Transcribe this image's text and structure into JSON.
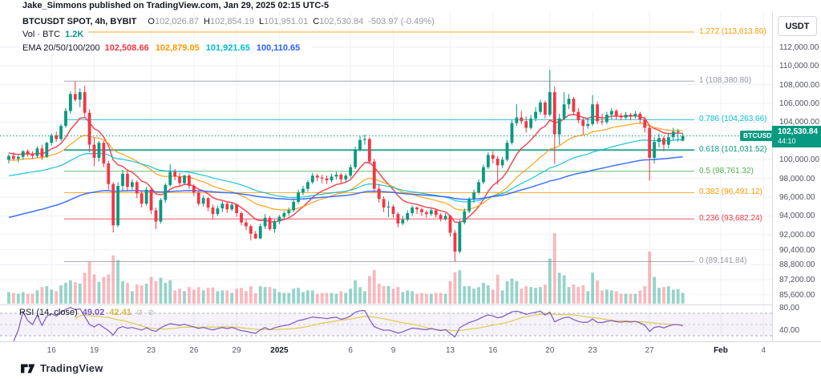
{
  "watermark": "Jake_Simmons published on TradingView.com, Jan 29, 2025 02:15 UTC-5",
  "legend": {
    "symbol": "BTCUSDT SPOT, 4h, BYBIT",
    "o_label": "O",
    "o": "102,026.87",
    "h_label": "H",
    "h": "102,854.19",
    "l_label": "L",
    "l": "101,951.01",
    "c_label": "C",
    "c": "102,530.84",
    "change": "-503.97 (-0.49%)",
    "vol_label": "Vol · BTC",
    "vol_value": "1.2K",
    "vol_color": "#089981",
    "ema_label": "EMA 20/50/100/200",
    "ema_values": [
      "102,508.66",
      "102,879.05",
      "101,921.65",
      "100,110.65"
    ],
    "ema_colors": [
      "#f23645",
      "#ff9800",
      "#00bcd4",
      "#2962ff"
    ]
  },
  "rsi_legend": {
    "label": "RSI (14, close)",
    "value": "49.02",
    "value_color": "#7e57c2",
    "ma_value": "42.41",
    "ma_color": "#d8b63f",
    "hide_icon": "⊘"
  },
  "price_axis": {
    "currency": "USDT",
    "labels": [
      {
        "text": "112,000.00",
        "price": 112000
      },
      {
        "text": "110,000.00",
        "price": 110000
      },
      {
        "text": "108,000.00",
        "price": 108000
      },
      {
        "text": "106,000.00",
        "price": 106000
      },
      {
        "text": "104,000.00",
        "price": 104000
      },
      {
        "text": "100,000.00",
        "price": 100000
      },
      {
        "text": "98,000.00",
        "price": 98000
      },
      {
        "text": "96,000.00",
        "price": 96000
      },
      {
        "text": "94,000.00",
        "price": 94000
      },
      {
        "text": "92,000.00",
        "price": 92000
      },
      {
        "text": "90,400.00",
        "price": 90400
      },
      {
        "text": "88,800.00",
        "price": 88800
      },
      {
        "text": "87,200.00",
        "price": 87200
      },
      {
        "text": "85,600.00",
        "price": 85600
      }
    ],
    "rsi_labels": [
      {
        "text": "80.00",
        "value": 80
      },
      {
        "text": "40.00",
        "value": 40
      }
    ]
  },
  "price_badge": {
    "symbol": "BTCUSDT",
    "price": "102,530.84",
    "countdown": "44:10",
    "color": "#089981"
  },
  "time_axis": {
    "labels": [
      {
        "text": "16",
        "i": 9
      },
      {
        "text": "19",
        "i": 18
      },
      {
        "text": "23",
        "i": 30
      },
      {
        "text": "26",
        "i": 39
      },
      {
        "text": "29",
        "i": 48
      },
      {
        "text": "2025",
        "i": 57,
        "bold": true
      },
      {
        "text": "6",
        "i": 72
      },
      {
        "text": "9",
        "i": 81
      },
      {
        "text": "13",
        "i": 93
      },
      {
        "text": "16",
        "i": 102
      },
      {
        "text": "20",
        "i": 114
      },
      {
        "text": "23",
        "i": 123
      },
      {
        "text": "27",
        "i": 135
      },
      {
        "text": "Feb",
        "i": 150,
        "bold": true
      },
      {
        "text": "4",
        "i": 159
      }
    ]
  },
  "footer_logo_text": "TradingView",
  "chart_data": {
    "type": "candlestick",
    "symbol": "BTCUSDT",
    "exchange": "BYBIT",
    "interval": "4h",
    "title": "BTCUSDT SPOT, 4h, BYBIT",
    "last_candle": {
      "open": 102026.87,
      "high": 102854.19,
      "low": 101951.01,
      "close": 102530.84,
      "change": -503.97,
      "change_pct": -0.49
    },
    "current_volume": "1.2K",
    "price_line": 102530.84,
    "y_range": [
      85000,
      114200
    ],
    "colors": {
      "up": "#089981",
      "down": "#f23645",
      "grid": "#eef1f6",
      "price_line": "#089981"
    },
    "fib_levels": [
      {
        "label": "1.272 (113,613.80)",
        "level": 1.272,
        "price": 113613.8,
        "color": "#ff9800",
        "width": 1
      },
      {
        "label": "1 (108,380.80)",
        "level": 1,
        "price": 108380.8,
        "color": "#9598a1",
        "width": 1
      },
      {
        "label": "0.786 (104,263.66)",
        "level": 0.786,
        "price": 104263.66,
        "color": "#00bcd4",
        "width": 1
      },
      {
        "label": "0.618 (101,031.52)",
        "level": 0.618,
        "price": 101031.52,
        "color": "#089981",
        "width": 2
      },
      {
        "label": "0.5 (98,761.32)",
        "level": 0.5,
        "price": 98761.32,
        "color": "#4caf50",
        "width": 1
      },
      {
        "label": "0.382 (96,491.12)",
        "level": 0.382,
        "price": 96491.12,
        "color": "#ff9800",
        "width": 1
      },
      {
        "label": "0.236 (93,682.24)",
        "level": 0.236,
        "price": 93682.24,
        "color": "#f23645",
        "width": 1
      },
      {
        "label": "0 (89,141.84)",
        "level": 0,
        "price": 89141.84,
        "color": "#9598a1",
        "width": 1
      }
    ],
    "emas": {
      "periods": [
        20,
        50,
        100,
        200
      ],
      "current_values": [
        102508.66,
        102879.05,
        101921.65,
        100110.65
      ],
      "colors": [
        "#f23645",
        "#ff9800",
        "#00bcd4",
        "#2962ff"
      ],
      "render_periods": [
        10,
        25,
        50,
        100
      ],
      "render_seeds": [
        100800,
        99900,
        98200,
        93700
      ]
    },
    "rsi": {
      "period": 14,
      "source": "close",
      "value": 49.02,
      "ma_value": 42.41,
      "bands": [
        70,
        50,
        30
      ],
      "line_color": "#7e57c2",
      "ma_color": "#e3c94f",
      "band_fill": "rgba(126,87,194,0.08)"
    },
    "candles": [
      [
        100000,
        100600,
        99600,
        100400
      ],
      [
        100400,
        100800,
        99900,
        100100
      ],
      [
        100100,
        100500,
        99700,
        100300
      ],
      [
        100300,
        101000,
        100000,
        100900
      ],
      [
        100900,
        101100,
        100300,
        100600
      ],
      [
        100600,
        100900,
        100100,
        100400
      ],
      [
        100400,
        101400,
        100200,
        101200
      ],
      [
        101200,
        101600,
        100000,
        100300
      ],
      [
        100300,
        101900,
        100200,
        101800
      ],
      [
        101800,
        102800,
        101500,
        102600
      ],
      [
        102600,
        103000,
        101900,
        102200
      ],
      [
        102200,
        103800,
        102000,
        103600
      ],
      [
        103600,
        105500,
        103400,
        105200
      ],
      [
        105200,
        107300,
        104900,
        107000
      ],
      [
        107000,
        108380,
        106200,
        106400
      ],
      [
        106400,
        107600,
        105600,
        107200
      ],
      [
        107200,
        107900,
        104600,
        105000
      ],
      [
        105000,
        105400,
        100800,
        101600
      ],
      [
        101600,
        102400,
        99300,
        100200
      ],
      [
        100200,
        102000,
        99800,
        101800
      ],
      [
        101800,
        102000,
        99200,
        99600
      ],
      [
        99600,
        99900,
        96800,
        97400
      ],
      [
        97400,
        97600,
        92230,
        93000
      ],
      [
        93000,
        97600,
        92800,
        97200
      ],
      [
        97200,
        98900,
        96600,
        98500
      ],
      [
        98500,
        98800,
        96700,
        97100
      ],
      [
        97100,
        97900,
        96800,
        97600
      ],
      [
        97600,
        97800,
        95900,
        96400
      ],
      [
        96400,
        96700,
        94900,
        95300
      ],
      [
        95300,
        97100,
        95100,
        96800
      ],
      [
        96800,
        97000,
        94200,
        94600
      ],
      [
        94600,
        94900,
        92600,
        93400
      ],
      [
        93400,
        95900,
        93200,
        95700
      ],
      [
        95700,
        97500,
        95400,
        97300
      ],
      [
        97300,
        99500,
        97100,
        98700
      ],
      [
        98700,
        99000,
        97800,
        98200
      ],
      [
        98200,
        98600,
        97200,
        97500
      ],
      [
        97500,
        98400,
        97300,
        98300
      ],
      [
        98300,
        98500,
        96900,
        97200
      ],
      [
        97200,
        97400,
        96100,
        96500
      ],
      [
        96500,
        96700,
        95100,
        95300
      ],
      [
        95300,
        96200,
        95000,
        95900
      ],
      [
        95900,
        96000,
        94500,
        94900
      ],
      [
        94900,
        95200,
        93650,
        94200
      ],
      [
        94200,
        95100,
        94000,
        94800
      ],
      [
        94800,
        95600,
        94400,
        95300
      ],
      [
        95300,
        95500,
        94300,
        94700
      ],
      [
        94700,
        95400,
        94500,
        95200
      ],
      [
        95200,
        95300,
        93900,
        94300
      ],
      [
        94300,
        94500,
        93000,
        93300
      ],
      [
        93300,
        93600,
        92500,
        92900
      ],
      [
        92900,
        93100,
        91400,
        92100
      ],
      [
        92100,
        92400,
        91530,
        91600
      ],
      [
        91600,
        93200,
        91500,
        92900
      ],
      [
        92900,
        94200,
        92600,
        93800
      ],
      [
        93800,
        94000,
        92400,
        92600
      ],
      [
        92600,
        93600,
        92200,
        93400
      ],
      [
        93400,
        94100,
        93100,
        93900
      ],
      [
        93900,
        94500,
        93600,
        94300
      ],
      [
        94300,
        94900,
        94000,
        94600
      ],
      [
        94600,
        95800,
        94400,
        95500
      ],
      [
        95500,
        96800,
        95300,
        96500
      ],
      [
        96500,
        97200,
        96200,
        96900
      ],
      [
        96900,
        97800,
        96600,
        97600
      ],
      [
        97600,
        98600,
        97400,
        98300
      ],
      [
        98300,
        98500,
        97700,
        98100
      ],
      [
        98100,
        98400,
        97500,
        98000
      ],
      [
        98000,
        98300,
        97400,
        97800
      ],
      [
        97800,
        98500,
        97600,
        98200
      ],
      [
        98200,
        98700,
        97900,
        98400
      ],
      [
        98400,
        98600,
        97500,
        97900
      ],
      [
        97900,
        98500,
        97600,
        98300
      ],
      [
        98300,
        99500,
        98100,
        99200
      ],
      [
        99200,
        101400,
        99000,
        101100
      ],
      [
        101100,
        102480,
        100900,
        102100
      ],
      [
        102100,
        102700,
        101600,
        102200
      ],
      [
        102200,
        102400,
        99500,
        99800
      ],
      [
        99800,
        100100,
        96500,
        96900
      ],
      [
        96900,
        97400,
        95400,
        95800
      ],
      [
        95800,
        96100,
        94400,
        94900
      ],
      [
        94900,
        95600,
        93900,
        95000
      ],
      [
        95000,
        95200,
        93800,
        94200
      ],
      [
        94200,
        94400,
        92800,
        93200
      ],
      [
        93200,
        94000,
        93000,
        93600
      ],
      [
        93600,
        94600,
        93400,
        94300
      ],
      [
        94300,
        95100,
        94000,
        94900
      ],
      [
        94900,
        95000,
        94200,
        94700
      ],
      [
        94700,
        94900,
        94000,
        94400
      ],
      [
        94400,
        94600,
        93800,
        94200
      ],
      [
        94200,
        94800,
        94000,
        94600
      ],
      [
        94600,
        94700,
        93800,
        94100
      ],
      [
        94100,
        94300,
        93400,
        93700
      ],
      [
        93700,
        94300,
        93500,
        94000
      ],
      [
        94000,
        94100,
        91800,
        92200
      ],
      [
        92200,
        92500,
        89142,
        90200
      ],
      [
        90200,
        93600,
        90000,
        93300
      ],
      [
        93300,
        94800,
        93100,
        94500
      ],
      [
        94500,
        96000,
        94300,
        95800
      ],
      [
        95800,
        96800,
        95400,
        96500
      ],
      [
        96500,
        97900,
        96300,
        97600
      ],
      [
        97600,
        99500,
        97400,
        99200
      ],
      [
        99200,
        100800,
        99000,
        100500
      ],
      [
        100500,
        100900,
        99600,
        100100
      ],
      [
        100100,
        100400,
        97340,
        99400
      ],
      [
        99400,
        100300,
        99100,
        100000
      ],
      [
        100000,
        102100,
        99800,
        101800
      ],
      [
        101800,
        104200,
        101600,
        103900
      ],
      [
        103900,
        105900,
        103600,
        104500
      ],
      [
        104500,
        105200,
        103800,
        104100
      ],
      [
        104100,
        104600,
        102900,
        103400
      ],
      [
        103400,
        104800,
        103200,
        104400
      ],
      [
        104400,
        105600,
        104100,
        105100
      ],
      [
        105100,
        106400,
        104800,
        106100
      ],
      [
        106100,
        106300,
        104400,
        104800
      ],
      [
        104800,
        109590,
        104600,
        107200
      ],
      [
        107200,
        107800,
        99550,
        102700
      ],
      [
        102700,
        104900,
        101600,
        104400
      ],
      [
        104400,
        107200,
        104200,
        105900
      ],
      [
        105900,
        107000,
        105400,
        106500
      ],
      [
        106500,
        106700,
        104800,
        105100
      ],
      [
        105100,
        105500,
        103900,
        104200
      ],
      [
        104200,
        104500,
        102700,
        103600
      ],
      [
        103600,
        104400,
        103300,
        103800
      ],
      [
        103800,
        106900,
        103600,
        105900
      ],
      [
        105900,
        106200,
        103800,
        104100
      ],
      [
        104100,
        104900,
        103700,
        104000
      ],
      [
        104000,
        105100,
        103800,
        104800
      ],
      [
        104800,
        105500,
        104300,
        105200
      ],
      [
        105200,
        105400,
        104300,
        104700
      ],
      [
        104700,
        105000,
        104200,
        104500
      ],
      [
        104500,
        105100,
        104300,
        104800
      ],
      [
        104800,
        105000,
        104200,
        104600
      ],
      [
        104600,
        105200,
        104400,
        104900
      ],
      [
        104900,
        105100,
        103900,
        104300
      ],
      [
        104300,
        104600,
        102900,
        103400
      ],
      [
        103400,
        103600,
        97780,
        100200
      ],
      [
        100200,
        102400,
        99600,
        101900
      ],
      [
        101900,
        102800,
        101300,
        102300
      ],
      [
        102300,
        102500,
        100900,
        101600
      ],
      [
        101600,
        102900,
        101200,
        102400
      ],
      [
        102400,
        103400,
        102100,
        103000
      ],
      [
        103000,
        103250,
        101900,
        103035
      ],
      [
        102026.87,
        102854.19,
        101951.01,
        102530.84
      ]
    ]
  }
}
